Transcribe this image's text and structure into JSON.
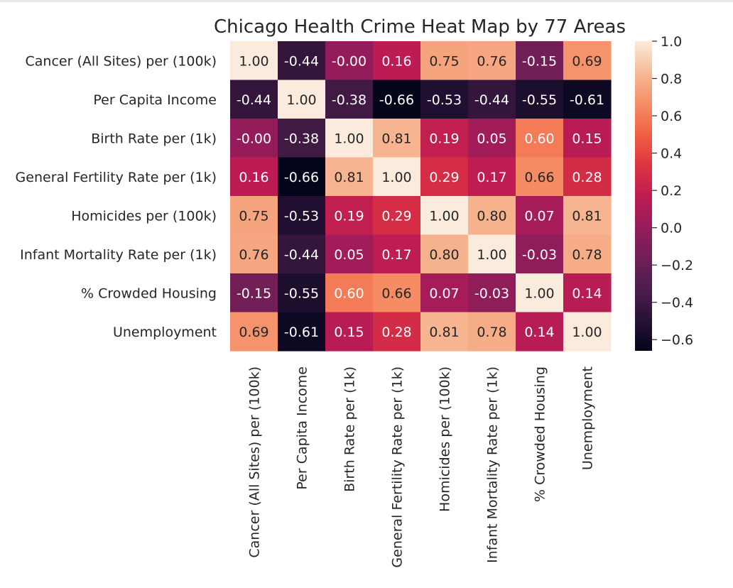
{
  "chart_data": {
    "type": "heatmap",
    "title": "Chicago Health Crime Heat Map by 77 Areas",
    "rows": [
      "Cancer (All Sites) per (100k)",
      "Per Capita Income",
      "Birth Rate per (1k)",
      "General Fertility Rate per (1k)",
      "Homicides per (100k)",
      "Infant Mortality Rate per (1k)",
      "% Crowded Housing",
      "Unemployment"
    ],
    "columns": [
      "Cancer (All Sites) per (100k)",
      "Per Capita Income",
      "Birth Rate per (1k)",
      "General Fertility Rate per (1k)",
      "Homicides per (100k)",
      "Infant Mortality Rate per (1k)",
      "% Crowded Housing",
      "Unemployment"
    ],
    "values": [
      [
        1.0,
        -0.44,
        -0.0,
        0.16,
        0.75,
        0.76,
        -0.15,
        0.69
      ],
      [
        -0.44,
        1.0,
        -0.38,
        -0.66,
        -0.53,
        -0.44,
        -0.55,
        -0.61
      ],
      [
        -0.0,
        -0.38,
        1.0,
        0.81,
        0.19,
        0.05,
        0.6,
        0.15
      ],
      [
        0.16,
        -0.66,
        0.81,
        1.0,
        0.29,
        0.17,
        0.66,
        0.28
      ],
      [
        0.75,
        -0.53,
        0.19,
        0.29,
        1.0,
        0.8,
        0.07,
        0.81
      ],
      [
        0.76,
        -0.44,
        0.05,
        0.17,
        0.8,
        1.0,
        -0.03,
        0.78
      ],
      [
        -0.15,
        -0.55,
        0.6,
        0.66,
        0.07,
        -0.03,
        1.0,
        0.14
      ],
      [
        0.69,
        -0.61,
        0.15,
        0.28,
        0.81,
        0.78,
        0.14,
        1.0
      ]
    ],
    "labels": [
      [
        "1.00",
        "-0.44",
        "-0.00",
        "0.16",
        "0.75",
        "0.76",
        "-0.15",
        "0.69"
      ],
      [
        "-0.44",
        "1.00",
        "-0.38",
        "-0.66",
        "-0.53",
        "-0.44",
        "-0.55",
        "-0.61"
      ],
      [
        "-0.00",
        "-0.38",
        "1.00",
        "0.81",
        "0.19",
        "0.05",
        "0.60",
        "0.15"
      ],
      [
        "0.16",
        "-0.66",
        "0.81",
        "1.00",
        "0.29",
        "0.17",
        "0.66",
        "0.28"
      ],
      [
        "0.75",
        "-0.53",
        "0.19",
        "0.29",
        "1.00",
        "0.80",
        "0.07",
        "0.81"
      ],
      [
        "0.76",
        "-0.44",
        "0.05",
        "0.17",
        "0.80",
        "1.00",
        "-0.03",
        "0.78"
      ],
      [
        "-0.15",
        "-0.55",
        "0.60",
        "0.66",
        "0.07",
        "-0.03",
        "1.00",
        "0.14"
      ],
      [
        "0.69",
        "-0.61",
        "0.15",
        "0.28",
        "0.81",
        "0.78",
        "0.14",
        "1.00"
      ]
    ],
    "colorbar": {
      "range": [
        -0.66,
        1.0
      ],
      "ticks": [
        1.0,
        0.8,
        0.6,
        0.4,
        0.2,
        0.0,
        -0.2,
        -0.4,
        -0.6
      ],
      "tick_labels": [
        "1.0",
        "0.8",
        "0.6",
        "0.4",
        "0.2",
        "0.0",
        "−0.2",
        "−0.4",
        "−0.6"
      ]
    },
    "colormap": "rocket",
    "grid": false
  }
}
